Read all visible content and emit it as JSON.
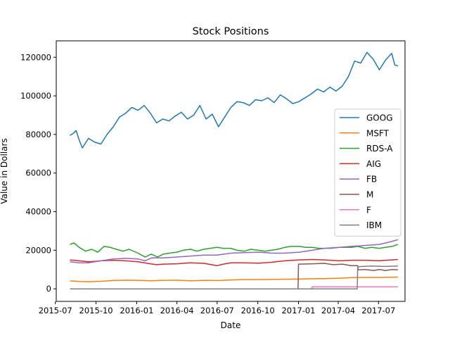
{
  "chart_data": {
    "type": "line",
    "title": "Stock Positions",
    "xlabel": "Date",
    "ylabel": "Value in Dollars",
    "xlim": [
      "2015-07-03",
      "2017-08-30"
    ],
    "ylim": [
      -6500,
      128500
    ],
    "x_ticks": [
      "2015-07",
      "2015-10",
      "2016-01",
      "2016-04",
      "2016-07",
      "2016-10",
      "2017-01",
      "2017-04",
      "2017-07"
    ],
    "y_ticks": [
      0,
      20000,
      40000,
      60000,
      80000,
      100000,
      120000
    ],
    "y_tick_labels": [
      "0",
      "20000",
      "40000",
      "60000",
      "80000",
      "100000",
      "120000"
    ],
    "grid": false,
    "legend_position": "center-right",
    "series": [
      {
        "name": "GOOG",
        "color": "#1f77b4",
        "points": [
          [
            "2015-08-03",
            79500
          ],
          [
            "2015-08-10",
            80500
          ],
          [
            "2015-08-17",
            82000
          ],
          [
            "2015-08-24",
            77000
          ],
          [
            "2015-08-31",
            73000
          ],
          [
            "2015-09-14",
            78000
          ],
          [
            "2015-09-28",
            76000
          ],
          [
            "2015-10-12",
            75000
          ],
          [
            "2015-10-26",
            80000
          ],
          [
            "2015-11-09",
            84000
          ],
          [
            "2015-11-23",
            89000
          ],
          [
            "2015-12-07",
            91000
          ],
          [
            "2015-12-21",
            94000
          ],
          [
            "2016-01-04",
            92500
          ],
          [
            "2016-01-18",
            95000
          ],
          [
            "2016-02-01",
            91000
          ],
          [
            "2016-02-15",
            86000
          ],
          [
            "2016-02-29",
            88000
          ],
          [
            "2016-03-14",
            87000
          ],
          [
            "2016-03-28",
            89500
          ],
          [
            "2016-04-11",
            91500
          ],
          [
            "2016-04-25",
            88000
          ],
          [
            "2016-05-09",
            90000
          ],
          [
            "2016-05-23",
            95000
          ],
          [
            "2016-06-06",
            88000
          ],
          [
            "2016-06-20",
            90500
          ],
          [
            "2016-07-04",
            84000
          ],
          [
            "2016-07-18",
            89000
          ],
          [
            "2016-08-01",
            94000
          ],
          [
            "2016-08-15",
            97000
          ],
          [
            "2016-08-29",
            96500
          ],
          [
            "2016-09-12",
            95000
          ],
          [
            "2016-09-26",
            98000
          ],
          [
            "2016-10-10",
            97500
          ],
          [
            "2016-10-24",
            99000
          ],
          [
            "2016-11-07",
            96500
          ],
          [
            "2016-11-21",
            100500
          ],
          [
            "2016-12-05",
            98500
          ],
          [
            "2016-12-19",
            96000
          ],
          [
            "2017-01-02",
            97000
          ],
          [
            "2017-01-16",
            99000
          ],
          [
            "2017-01-30",
            101000
          ],
          [
            "2017-02-13",
            103500
          ],
          [
            "2017-02-27",
            102000
          ],
          [
            "2017-03-13",
            104500
          ],
          [
            "2017-03-27",
            102500
          ],
          [
            "2017-04-10",
            105000
          ],
          [
            "2017-04-24",
            110000
          ],
          [
            "2017-05-08",
            118000
          ],
          [
            "2017-05-22",
            117000
          ],
          [
            "2017-06-05",
            122500
          ],
          [
            "2017-06-19",
            119000
          ],
          [
            "2017-07-03",
            113500
          ],
          [
            "2017-07-17",
            118500
          ],
          [
            "2017-07-31",
            122000
          ],
          [
            "2017-08-07",
            116000
          ],
          [
            "2017-08-14",
            115500
          ]
        ]
      },
      {
        "name": "MSFT",
        "color": "#ff7f0e",
        "points": [
          [
            "2015-08-03",
            4100
          ],
          [
            "2015-08-24",
            3800
          ],
          [
            "2015-09-14",
            3700
          ],
          [
            "2015-10-12",
            3900
          ],
          [
            "2015-11-09",
            4300
          ],
          [
            "2015-12-07",
            4500
          ],
          [
            "2016-01-04",
            4400
          ],
          [
            "2016-02-01",
            4200
          ],
          [
            "2016-03-01",
            4400
          ],
          [
            "2016-04-01",
            4500
          ],
          [
            "2016-05-02",
            4200
          ],
          [
            "2016-06-01",
            4400
          ],
          [
            "2016-07-01",
            4300
          ],
          [
            "2016-08-01",
            4600
          ],
          [
            "2016-09-01",
            4800
          ],
          [
            "2016-10-03",
            4800
          ],
          [
            "2016-11-01",
            4900
          ],
          [
            "2016-12-01",
            5000
          ],
          [
            "2017-01-03",
            5100
          ],
          [
            "2017-02-01",
            5200
          ],
          [
            "2017-03-01",
            5300
          ],
          [
            "2017-04-03",
            5500
          ],
          [
            "2017-05-01",
            5800
          ],
          [
            "2017-06-01",
            5900
          ],
          [
            "2017-07-03",
            5900
          ],
          [
            "2017-08-14",
            6100
          ]
        ]
      },
      {
        "name": "RDS-A",
        "color": "#2ca02c",
        "points": [
          [
            "2015-08-03",
            23000
          ],
          [
            "2015-08-12",
            23800
          ],
          [
            "2015-08-24",
            21500
          ],
          [
            "2015-09-07",
            19500
          ],
          [
            "2015-09-21",
            20500
          ],
          [
            "2015-10-05",
            19000
          ],
          [
            "2015-10-19",
            22000
          ],
          [
            "2015-11-02",
            21500
          ],
          [
            "2015-11-16",
            20500
          ],
          [
            "2015-12-01",
            19500
          ],
          [
            "2015-12-15",
            20500
          ],
          [
            "2016-01-04",
            18500
          ],
          [
            "2016-01-20",
            16500
          ],
          [
            "2016-02-03",
            18000
          ],
          [
            "2016-02-17",
            16500
          ],
          [
            "2016-03-01",
            18000
          ],
          [
            "2016-03-15",
            18500
          ],
          [
            "2016-04-01",
            19000
          ],
          [
            "2016-04-15",
            20000
          ],
          [
            "2016-05-02",
            20500
          ],
          [
            "2016-05-16",
            19500
          ],
          [
            "2016-06-01",
            20500
          ],
          [
            "2016-06-15",
            21000
          ],
          [
            "2016-07-01",
            21500
          ],
          [
            "2016-07-15",
            21000
          ],
          [
            "2016-08-01",
            21000
          ],
          [
            "2016-08-15",
            20000
          ],
          [
            "2016-09-01",
            19500
          ],
          [
            "2016-09-15",
            20500
          ],
          [
            "2016-10-03",
            20000
          ],
          [
            "2016-10-17",
            19500
          ],
          [
            "2016-11-01",
            20000
          ],
          [
            "2016-11-15",
            20500
          ],
          [
            "2016-12-01",
            21500
          ],
          [
            "2016-12-15",
            22000
          ],
          [
            "2017-01-03",
            22000
          ],
          [
            "2017-01-17",
            21500
          ],
          [
            "2017-02-01",
            21500
          ],
          [
            "2017-02-15",
            21000
          ],
          [
            "2017-03-01",
            21000
          ],
          [
            "2017-03-15",
            21000
          ],
          [
            "2017-04-03",
            21500
          ],
          [
            "2017-04-17",
            21500
          ],
          [
            "2017-05-01",
            21500
          ],
          [
            "2017-05-15",
            22000
          ],
          [
            "2017-06-01",
            21000
          ],
          [
            "2017-06-15",
            21500
          ],
          [
            "2017-07-03",
            21000
          ],
          [
            "2017-07-17",
            21500
          ],
          [
            "2017-08-01",
            22000
          ],
          [
            "2017-08-14",
            23000
          ]
        ]
      },
      {
        "name": "AIG",
        "color": "#d62728",
        "points": [
          [
            "2015-08-03",
            15000
          ],
          [
            "2015-08-24",
            14500
          ],
          [
            "2015-09-14",
            14000
          ],
          [
            "2015-10-12",
            14500
          ],
          [
            "2015-11-09",
            14800
          ],
          [
            "2015-12-07",
            14500
          ],
          [
            "2016-01-04",
            14000
          ],
          [
            "2016-02-01",
            13000
          ],
          [
            "2016-02-15",
            12500
          ],
          [
            "2016-03-01",
            12800
          ],
          [
            "2016-04-01",
            13000
          ],
          [
            "2016-05-02",
            13500
          ],
          [
            "2016-06-01",
            13200
          ],
          [
            "2016-07-01",
            12000
          ],
          [
            "2016-07-15",
            12800
          ],
          [
            "2016-08-01",
            13500
          ],
          [
            "2016-09-01",
            13500
          ],
          [
            "2016-10-03",
            13300
          ],
          [
            "2016-11-01",
            13800
          ],
          [
            "2016-12-01",
            14500
          ],
          [
            "2017-01-03",
            15000
          ],
          [
            "2017-02-01",
            15200
          ],
          [
            "2017-03-01",
            15000
          ],
          [
            "2017-04-03",
            14500
          ],
          [
            "2017-05-01",
            14800
          ],
          [
            "2017-06-01",
            14800
          ],
          [
            "2017-07-03",
            14600
          ],
          [
            "2017-08-14",
            15200
          ]
        ]
      },
      {
        "name": "FB",
        "color": "#9467bd",
        "points": [
          [
            "2015-08-03",
            14000
          ],
          [
            "2015-08-24",
            13500
          ],
          [
            "2015-09-14",
            13500
          ],
          [
            "2015-10-12",
            14500
          ],
          [
            "2015-11-09",
            15500
          ],
          [
            "2015-12-07",
            15800
          ],
          [
            "2016-01-04",
            15500
          ],
          [
            "2016-01-20",
            14500
          ],
          [
            "2016-02-03",
            16000
          ],
          [
            "2016-03-01",
            16000
          ],
          [
            "2016-04-01",
            16500
          ],
          [
            "2016-05-02",
            17000
          ],
          [
            "2016-06-01",
            17500
          ],
          [
            "2016-07-01",
            17500
          ],
          [
            "2016-08-01",
            18500
          ],
          [
            "2016-09-01",
            18800
          ],
          [
            "2016-10-03",
            19000
          ],
          [
            "2016-11-01",
            18500
          ],
          [
            "2016-12-01",
            18500
          ],
          [
            "2017-01-03",
            19000
          ],
          [
            "2017-02-01",
            20000
          ],
          [
            "2017-03-01",
            21000
          ],
          [
            "2017-04-03",
            21500
          ],
          [
            "2017-05-01",
            22000
          ],
          [
            "2017-06-01",
            22500
          ],
          [
            "2017-07-03",
            23000
          ],
          [
            "2017-07-31",
            24500
          ],
          [
            "2017-08-14",
            25500
          ]
        ]
      },
      {
        "name": "M",
        "color": "#8c564b",
        "points": [
          [
            "2015-08-03",
            0
          ],
          [
            "2016-12-31",
            0
          ],
          [
            "2017-01-01",
            12800
          ],
          [
            "2017-02-01",
            13000
          ],
          [
            "2017-03-01",
            13200
          ],
          [
            "2017-03-20",
            12500
          ],
          [
            "2017-04-10",
            12800
          ],
          [
            "2017-05-01",
            12000
          ],
          [
            "2017-05-15",
            12000
          ],
          [
            "2017-05-16",
            9800
          ],
          [
            "2017-06-01",
            10000
          ],
          [
            "2017-06-20",
            9500
          ],
          [
            "2017-07-03",
            10000
          ],
          [
            "2017-07-17",
            9500
          ],
          [
            "2017-08-01",
            10000
          ],
          [
            "2017-08-14",
            9800
          ]
        ]
      },
      {
        "name": "F",
        "color": "#e377c2",
        "points": [
          [
            "2015-08-03",
            0
          ],
          [
            "2017-01-31",
            0
          ],
          [
            "2017-02-01",
            1100
          ],
          [
            "2017-05-01",
            1000
          ],
          [
            "2017-08-14",
            1000
          ]
        ]
      },
      {
        "name": "IBM",
        "color": "#7f7f7f",
        "points": [
          [
            "2015-08-03",
            0
          ],
          [
            "2017-05-14",
            0
          ],
          [
            "2017-05-15",
            11500
          ],
          [
            "2017-06-15",
            11800
          ],
          [
            "2017-07-15",
            11600
          ],
          [
            "2017-08-14",
            11800
          ]
        ]
      }
    ]
  }
}
